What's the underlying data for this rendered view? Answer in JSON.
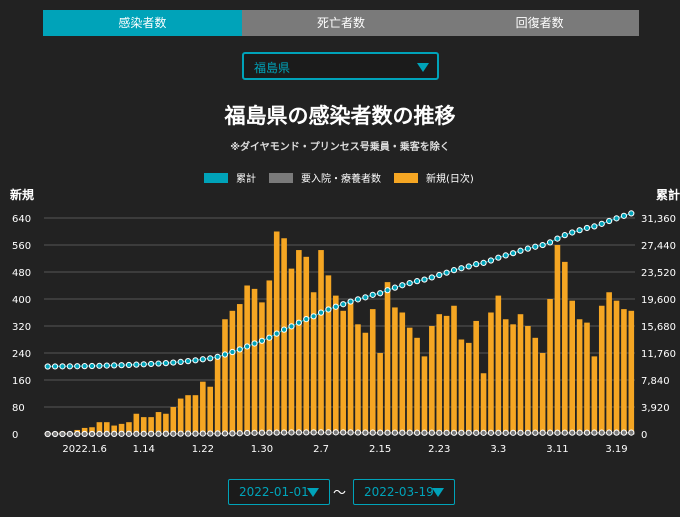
{
  "tabs": [
    {
      "label": "感染者数",
      "active": true
    },
    {
      "label": "死亡者数",
      "active": false
    },
    {
      "label": "回復者数",
      "active": false
    }
  ],
  "prefecture_select": {
    "value": "福島県"
  },
  "title": "福島県の感染者数の推移",
  "subtitle": "※ダイヤモンド・プリンセス号乗員・乗客を除く",
  "legend": [
    {
      "label": "累計",
      "color": "#00a3b9"
    },
    {
      "label": "要入院・療養者数",
      "color": "#7a7a7a"
    },
    {
      "label": "新規(日次)",
      "color": "#f5a623"
    }
  ],
  "left_axis_label": "新規",
  "right_axis_label": "累計",
  "date_range": {
    "start": "2022-01-01",
    "separator": "〜",
    "end": "2022-03-19"
  },
  "chart_data": {
    "type": "bar",
    "x_tick_labels": [
      "2022.1.6",
      "1.14",
      "1.22",
      "1.30",
      "2.7",
      "2.15",
      "2.23",
      "3.3",
      "3.11",
      "3.19"
    ],
    "x_tick_indices": [
      5,
      13,
      21,
      29,
      37,
      45,
      53,
      61,
      69,
      77
    ],
    "left_axis": {
      "ticks": [
        "0",
        "80",
        "160",
        "240",
        "320",
        "400",
        "480",
        "560",
        "640"
      ],
      "range": [
        0,
        640
      ]
    },
    "right_axis": {
      "ticks": [
        "0",
        "3,920",
        "7,840",
        "11,760",
        "15,680",
        "19,600",
        "23,520",
        "27,440",
        "31,360"
      ],
      "range": [
        0,
        31360
      ]
    },
    "grid": true,
    "series": [
      {
        "name": "新規(日次)",
        "kind": "bar",
        "color": "#f5a623",
        "values": [
          5,
          5,
          7,
          4,
          12,
          18,
          20,
          35,
          35,
          25,
          30,
          35,
          60,
          50,
          50,
          65,
          60,
          80,
          105,
          115,
          115,
          155,
          140,
          225,
          340,
          365,
          385,
          440,
          430,
          390,
          455,
          600,
          580,
          490,
          545,
          525,
          420,
          545,
          470,
          410,
          365,
          395,
          325,
          300,
          370,
          240,
          450,
          375,
          360,
          315,
          285,
          230,
          320,
          355,
          350,
          380,
          280,
          270,
          335,
          180,
          360,
          410,
          340,
          325,
          355,
          320,
          285,
          240,
          400,
          560,
          510,
          395,
          340,
          330,
          230,
          380,
          420,
          395,
          370,
          365
        ]
      },
      {
        "name": "累計",
        "kind": "line",
        "color": "#00a3b9",
        "values": [
          9800,
          9810,
          9820,
          9830,
          9840,
          9850,
          9870,
          9900,
          9930,
          9960,
          9990,
          10020,
          10070,
          10120,
          10170,
          10230,
          10290,
          10370,
          10470,
          10580,
          10700,
          10850,
          10990,
          11210,
          11540,
          11900,
          12280,
          12710,
          13140,
          13530,
          13980,
          14570,
          15150,
          15630,
          16160,
          16680,
          17090,
          17620,
          18080,
          18480,
          18840,
          19230,
          19550,
          19840,
          20200,
          20440,
          20880,
          21250,
          21600,
          21910,
          22190,
          22420,
          22730,
          23080,
          23420,
          23790,
          24070,
          24330,
          24660,
          24840,
          25190,
          25600,
          25930,
          26250,
          26600,
          26910,
          27190,
          27430,
          27820,
          28370,
          28870,
          29260,
          29590,
          29910,
          30140,
          30510,
          30920,
          31310,
          31670,
          32030
        ]
      },
      {
        "name": "要入院・療養者数",
        "kind": "line",
        "color": "#7a7a7a",
        "values": [
          0,
          0,
          0,
          2,
          5,
          7,
          8,
          12,
          15,
          18,
          20,
          22,
          25,
          28,
          30,
          32,
          36,
          40,
          45,
          50,
          55,
          60,
          65,
          70,
          80,
          90,
          110,
          150,
          170,
          180,
          190,
          200,
          210,
          220,
          225,
          230,
          230,
          240,
          245,
          240,
          230,
          220,
          210,
          200,
          195,
          190,
          190,
          188,
          185,
          185,
          180,
          180,
          178,
          175,
          175,
          172,
          172,
          170,
          168,
          165,
          165,
          165,
          168,
          170,
          172,
          175,
          178,
          180,
          180,
          185,
          188,
          190,
          190,
          192,
          195,
          195,
          195,
          198,
          200,
          205
        ]
      }
    ]
  }
}
